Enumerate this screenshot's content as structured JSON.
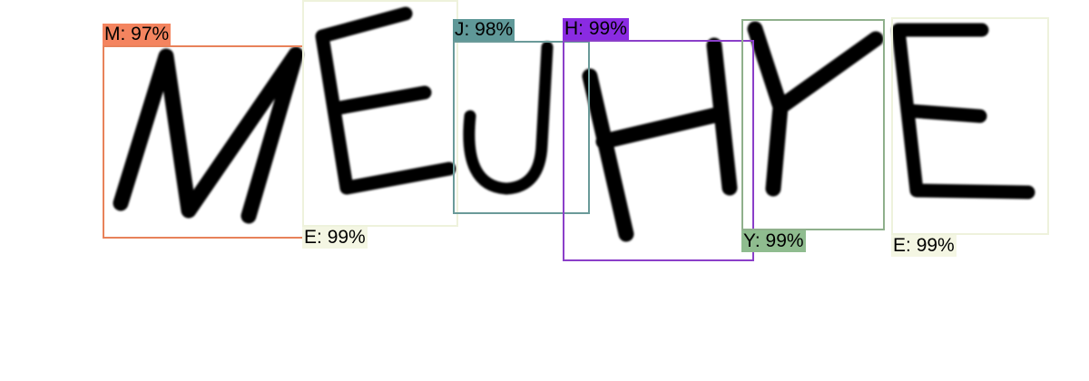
{
  "captcha_text": "MEJHYE",
  "detections": [
    {
      "char": "M",
      "confidence": "97%",
      "color": "#E8825A",
      "label_color": "#F4845F"
    },
    {
      "char": "E",
      "confidence": "99%",
      "color": "#EEF2DC",
      "label_color": "#F4F6E3"
    },
    {
      "char": "J",
      "confidence": "98%",
      "color": "#6A9A99",
      "label_color": "#5F9898"
    },
    {
      "char": "H",
      "confidence": "99%",
      "color": "#8B3FC9",
      "label_color": "#8A2BE2"
    },
    {
      "char": "Y",
      "confidence": "99%",
      "color": "#8FB08C",
      "label_color": "#8FBC8F"
    },
    {
      "char": "E",
      "confidence": "99%",
      "color": "#EEF2DC",
      "label_color": "#F4F6E3"
    }
  ]
}
